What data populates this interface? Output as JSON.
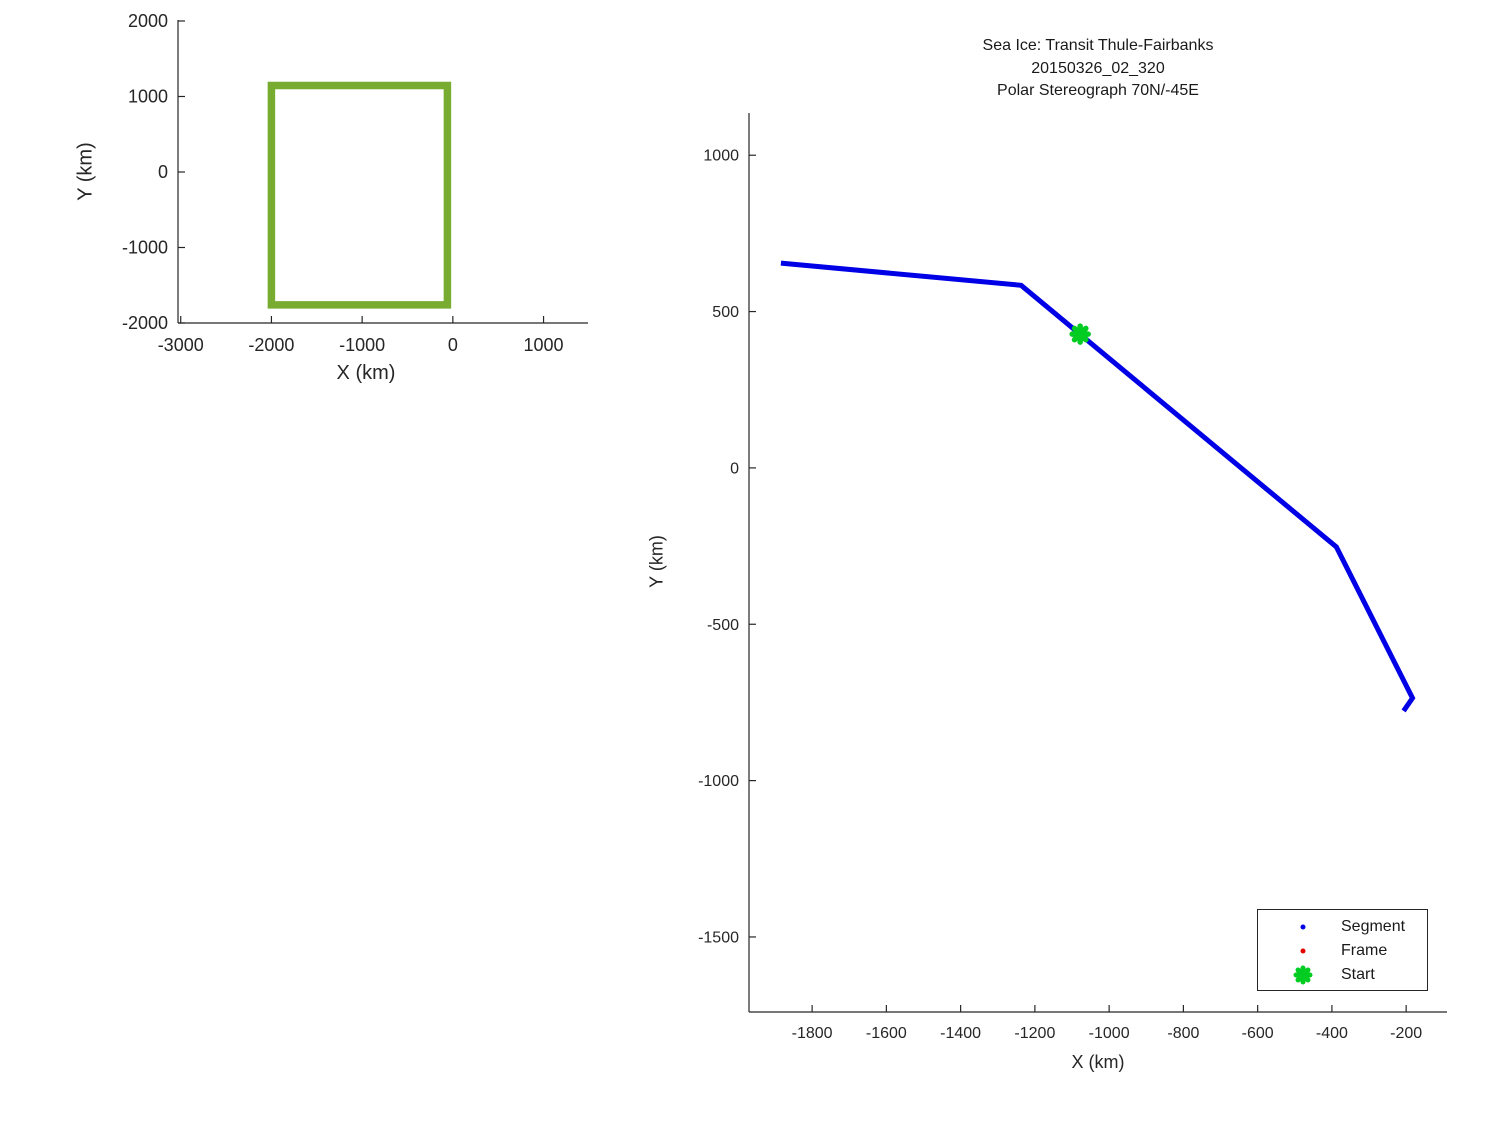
{
  "colors": {
    "axis": "#262626",
    "background": "#ffffff",
    "segment_blue": "#0000E6",
    "frame_red": "#E50000",
    "start_green": "#00CC22",
    "footprint_green": "#77AC30"
  },
  "chart_data": [
    {
      "id": "footprint-overview",
      "type": "line",
      "title": "",
      "xlabel": "X (km)",
      "ylabel": "Y (km)",
      "xlim": [
        -3030,
        1490
      ],
      "ylim": [
        -2000,
        2013
      ],
      "xticks": [
        -3000,
        -2000,
        -1000,
        0,
        1000
      ],
      "yticks": [
        -2000,
        -1000,
        0,
        1000,
        2000
      ],
      "grid": false,
      "series": [
        {
          "name": "footprint-box",
          "color": "#77AC30",
          "linewidth": 7.5,
          "closed": true,
          "points": [
            [
              -2000,
              1145
            ],
            [
              -60,
              1145
            ],
            [
              -60,
              -1760
            ],
            [
              -2000,
              -1760
            ]
          ]
        }
      ]
    },
    {
      "id": "transit-track",
      "type": "line",
      "title_lines": [
        "Sea Ice: Transit Thule-Fairbanks",
        "20150326_02_320",
        "Polar Stereograph 70N/-45E"
      ],
      "xlabel": "X (km)",
      "ylabel": "Y (km)",
      "xlim": [
        -1970,
        -90
      ],
      "ylim": [
        -1740,
        1135
      ],
      "xticks": [
        -1800,
        -1600,
        -1400,
        -1200,
        -1000,
        -800,
        -600,
        -400,
        -200
      ],
      "yticks": [
        -1500,
        -1000,
        -500,
        0,
        500,
        1000
      ],
      "grid": false,
      "series": [
        {
          "name": "Segment",
          "color": "#0000E6",
          "linewidth": 5,
          "closed": false,
          "points": [
            [
              -1884,
              655
            ],
            [
              -1237,
              584
            ],
            [
              -388,
              -253
            ],
            [
              -183,
              -736
            ],
            [
              -207,
              -777
            ]
          ]
        }
      ],
      "markers": [
        {
          "name": "Start",
          "shape": "asterisk",
          "color": "#00CC22",
          "x": -1078,
          "y": 428,
          "size": 16
        }
      ],
      "legend": {
        "position": "bottom-right",
        "entries": [
          {
            "label": "Segment",
            "marker": "dot",
            "color": "#0000E6"
          },
          {
            "label": "Frame",
            "marker": "dot",
            "color": "#E50000"
          },
          {
            "label": "Start",
            "marker": "asterisk",
            "color": "#00CC22"
          }
        ]
      }
    }
  ]
}
